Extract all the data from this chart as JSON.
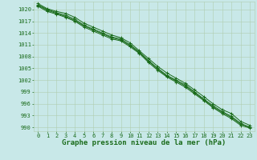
{
  "background_color": "#c8e8e8",
  "grid_color": "#b0ceb0",
  "line_color": "#1a6b1a",
  "marker_color": "#1a6b1a",
  "xlabel": "Graphe pression niveau de la mer (hPa)",
  "xlabel_fontsize": 6.5,
  "xlabel_color": "#1a6b1a",
  "tick_color": "#1a6b1a",
  "tick_fontsize": 5.0,
  "ylim": [
    989.0,
    1022.0
  ],
  "xlim": [
    -0.5,
    23.5
  ],
  "yticks": [
    990,
    993,
    996,
    999,
    1002,
    1005,
    1008,
    1011,
    1014,
    1017,
    1020
  ],
  "xticks": [
    0,
    1,
    2,
    3,
    4,
    5,
    6,
    7,
    8,
    9,
    10,
    11,
    12,
    13,
    14,
    15,
    16,
    17,
    18,
    19,
    20,
    21,
    22,
    23
  ],
  "series": [
    [
      1021.5,
      1020.2,
      1019.5,
      1019.0,
      1018.0,
      1016.5,
      1015.5,
      1014.5,
      1013.5,
      1012.8,
      1011.5,
      1009.5,
      1007.5,
      1005.5,
      1003.8,
      1002.5,
      1001.2,
      999.5,
      997.8,
      996.0,
      994.5,
      993.5,
      991.5,
      990.5
    ],
    [
      1021.2,
      1020.0,
      1019.2,
      1018.5,
      1017.5,
      1016.0,
      1015.0,
      1014.0,
      1013.0,
      1012.5,
      1011.0,
      1009.2,
      1007.0,
      1005.0,
      1003.2,
      1002.0,
      1000.8,
      999.0,
      997.2,
      995.5,
      994.0,
      992.8,
      991.0,
      990.0
    ],
    [
      1021.0,
      1019.8,
      1019.0,
      1018.2,
      1017.2,
      1015.8,
      1014.8,
      1013.8,
      1012.8,
      1012.2,
      1010.8,
      1009.0,
      1006.8,
      1004.8,
      1003.0,
      1001.8,
      1000.5,
      998.8,
      997.0,
      995.2,
      993.8,
      992.5,
      990.8,
      990.0
    ],
    [
      1020.8,
      1019.5,
      1018.8,
      1018.0,
      1017.0,
      1015.5,
      1014.5,
      1013.5,
      1012.5,
      1012.0,
      1010.5,
      1008.8,
      1006.5,
      1004.5,
      1002.8,
      1001.5,
      1000.2,
      998.5,
      996.8,
      995.0,
      993.5,
      992.2,
      990.5,
      989.8
    ]
  ]
}
